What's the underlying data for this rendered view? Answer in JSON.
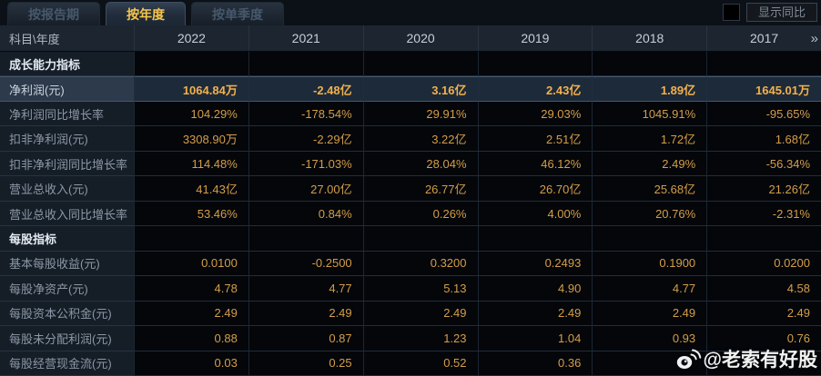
{
  "tabs": [
    {
      "label": "按报告期",
      "active": false
    },
    {
      "label": "按年度",
      "active": true
    },
    {
      "label": "按单季度",
      "active": false
    }
  ],
  "controls": {
    "show_yoy_label": "显示同比",
    "checkbox_checked": false
  },
  "table": {
    "corner_label": "科目\\年度",
    "years": [
      "2022",
      "2021",
      "2020",
      "2019",
      "2018",
      "2017"
    ],
    "more_columns_glyph": "»",
    "rows": [
      {
        "type": "section",
        "label": "成长能力指标",
        "values": [
          "",
          "",
          "",
          "",
          "",
          ""
        ]
      },
      {
        "type": "data",
        "highlight": true,
        "label": "净利润(元)",
        "values": [
          "1064.84万",
          "-2.48亿",
          "3.16亿",
          "2.43亿",
          "1.89亿",
          "1645.01万"
        ]
      },
      {
        "type": "data",
        "label": "净利润同比增长率",
        "values": [
          "104.29%",
          "-178.54%",
          "29.91%",
          "29.03%",
          "1045.91%",
          "-95.65%"
        ]
      },
      {
        "type": "data",
        "label": "扣非净利润(元)",
        "values": [
          "3308.90万",
          "-2.29亿",
          "3.22亿",
          "2.51亿",
          "1.72亿",
          "1.68亿"
        ]
      },
      {
        "type": "data",
        "label": "扣非净利润同比增长率",
        "values": [
          "114.48%",
          "-171.03%",
          "28.04%",
          "46.12%",
          "2.49%",
          "-56.34%"
        ]
      },
      {
        "type": "data",
        "label": "营业总收入(元)",
        "values": [
          "41.43亿",
          "27.00亿",
          "26.77亿",
          "26.70亿",
          "25.68亿",
          "21.26亿"
        ]
      },
      {
        "type": "data",
        "label": "营业总收入同比增长率",
        "values": [
          "53.46%",
          "0.84%",
          "0.26%",
          "4.00%",
          "20.76%",
          "-2.31%"
        ]
      },
      {
        "type": "section",
        "label": "每股指标",
        "values": [
          "",
          "",
          "",
          "",
          "",
          ""
        ]
      },
      {
        "type": "data",
        "label": "基本每股收益(元)",
        "values": [
          "0.0100",
          "-0.2500",
          "0.3200",
          "0.2493",
          "0.1900",
          "0.0200"
        ]
      },
      {
        "type": "data",
        "label": "每股净资产(元)",
        "values": [
          "4.78",
          "4.77",
          "5.13",
          "4.90",
          "4.77",
          "4.58"
        ]
      },
      {
        "type": "data",
        "label": "每股资本公积金(元)",
        "values": [
          "2.49",
          "2.49",
          "2.49",
          "2.49",
          "2.49",
          "2.49"
        ]
      },
      {
        "type": "data",
        "label": "每股未分配利润(元)",
        "values": [
          "0.88",
          "0.87",
          "1.23",
          "1.04",
          "0.93",
          "0.76"
        ]
      },
      {
        "type": "data",
        "label": "每股经营现金流(元)",
        "values": [
          "0.03",
          "0.25",
          "0.52",
          "0.36",
          "",
          ""
        ]
      }
    ]
  },
  "watermark": {
    "text": "@老索有好股",
    "icon": "weibo-icon"
  },
  "colors": {
    "accent_gold": "#f6c64b",
    "value_orange": "#d49e48",
    "highlight_row_bg": "#1d2a3a",
    "header_bg": "#1c2530",
    "label_col_bg": "#151d27",
    "cell_bg": "#04060a"
  }
}
